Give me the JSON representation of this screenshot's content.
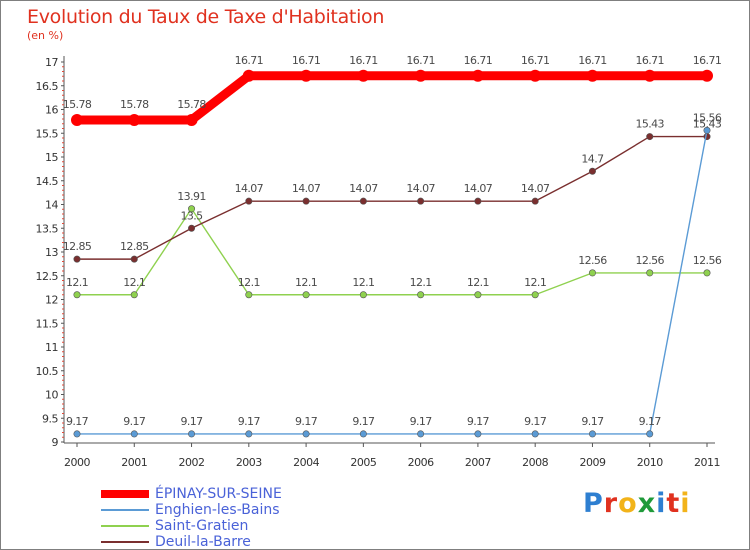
{
  "header": {
    "title": "Evolution du Taux de Taxe d'Habitation",
    "subtitle": "(en %)"
  },
  "logo": {
    "text": "Proxiti",
    "letters": [
      "P",
      "r",
      "o",
      "x",
      "i",
      "t",
      "i"
    ],
    "colors": [
      "#2e7fd1",
      "#e0311f",
      "#f2b31a",
      "#1f9a3a",
      "#2e7fd1",
      "#e0311f",
      "#f2b31a"
    ]
  },
  "chart_data": {
    "type": "line",
    "title": "Evolution du Taux de Taxe d'Habitation",
    "subtitle": "(en %)",
    "xlabel": "",
    "ylabel": "",
    "x": [
      "2000",
      "2001",
      "2002",
      "2003",
      "2004",
      "2005",
      "2006",
      "2007",
      "2008",
      "2009",
      "2010",
      "2011"
    ],
    "ylim": [
      9,
      17
    ],
    "yticks": [
      "9",
      "9.5",
      "10",
      "10.5",
      "11",
      "11.5",
      "12",
      "12.5",
      "13",
      "13.5",
      "14",
      "14.5",
      "15",
      "15.5",
      "16",
      "16.5",
      "17"
    ],
    "grid": false,
    "legend_position": "bottom-left",
    "series": [
      {
        "name": "ÉPINAY-SUR-SEINE",
        "color": "#ff0000",
        "label_color": "#4a4a4a",
        "values": [
          15.78,
          15.78,
          15.78,
          16.71,
          16.71,
          16.71,
          16.71,
          16.71,
          16.71,
          16.71,
          16.71,
          16.71
        ],
        "labels": [
          "15.78",
          "15.78",
          "15.78",
          "16.71",
          "16.71",
          "16.71",
          "16.71",
          "16.71",
          "16.71",
          "16.71",
          "16.71",
          "16.71"
        ]
      },
      {
        "name": "Enghien-les-Bains",
        "color": "#5b9bd5",
        "label_color": "#4a4a4a",
        "values": [
          9.17,
          9.17,
          9.17,
          9.17,
          9.17,
          9.17,
          9.17,
          9.17,
          9.17,
          9.17,
          9.17,
          15.56
        ],
        "labels": [
          "9.17",
          "9.17",
          "9.17",
          "9.17",
          "9.17",
          "9.17",
          "9.17",
          "9.17",
          "9.17",
          "9.17",
          "9.17",
          "15.56"
        ]
      },
      {
        "name": "Saint-Gratien",
        "color": "#8fd14f",
        "label_color": "#4a4a4a",
        "values": [
          12.1,
          12.1,
          13.91,
          12.1,
          12.1,
          12.1,
          12.1,
          12.1,
          12.1,
          12.56,
          12.56,
          12.56
        ],
        "labels": [
          "12.1",
          "12.1",
          "13.91",
          "12.1",
          "12.1",
          "12.1",
          "12.1",
          "12.1",
          "12.1",
          "12.56",
          "12.56",
          "12.56"
        ]
      },
      {
        "name": "Deuil-la-Barre",
        "color": "#7a2f2f",
        "label_color": "#4a4a4a",
        "values": [
          12.85,
          12.85,
          13.5,
          14.07,
          14.07,
          14.07,
          14.07,
          14.07,
          14.07,
          14.7,
          15.43,
          15.43
        ],
        "labels": [
          "12.85",
          "12.85",
          "13.5",
          "14.07",
          "14.07",
          "14.07",
          "14.07",
          "14.07",
          "14.07",
          "14.7",
          "15.43",
          "15.43"
        ]
      }
    ],
    "legend": [
      {
        "label": "ÉPINAY-SUR-SEINE",
        "color": "#ff0000",
        "thick": true
      },
      {
        "label": "Enghien-les-Bains",
        "color": "#5b9bd5",
        "thick": false
      },
      {
        "label": "Saint-Gratien",
        "color": "#8fd14f",
        "thick": false
      },
      {
        "label": "Deuil-la-Barre",
        "color": "#7a2f2f",
        "thick": false
      }
    ]
  }
}
